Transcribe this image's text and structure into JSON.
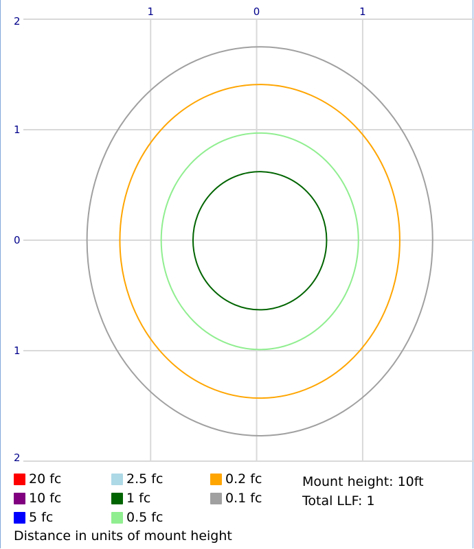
{
  "chart_data": {
    "type": "contour",
    "x_tick_labels": [
      "1",
      "0",
      "1"
    ],
    "x_tick_values": [
      -1,
      0,
      1
    ],
    "y_tick_labels": [
      "2",
      "1",
      "0",
      "1",
      "2"
    ],
    "y_tick_values": [
      2,
      1,
      0,
      -1,
      -2
    ],
    "xlim": [
      -2.2,
      2.05
    ],
    "ylim": [
      -2,
      2
    ],
    "grid": true,
    "contours": [
      {
        "label": "0.1 fc",
        "color": "#a0a0a0",
        "rx": 1.63,
        "ry_top": 1.75,
        "ry_bottom": 1.77,
        "cx": 0.03
      },
      {
        "label": "0.2 fc",
        "color": "#ffa500",
        "rx": 1.32,
        "ry_top": 1.41,
        "ry_bottom": 1.43,
        "cx": 0.03
      },
      {
        "label": "0.5 fc",
        "color": "#90ee90",
        "rx": 0.93,
        "ry_top": 0.97,
        "ry_bottom": 0.99,
        "cx": 0.03
      },
      {
        "label": "1 fc",
        "color": "#006400",
        "rx": 0.63,
        "ry_top": 0.62,
        "ry_bottom": 0.63,
        "cx": 0.03
      }
    ],
    "legend": [
      {
        "label": "20 fc",
        "color": "#ff0000"
      },
      {
        "label": "10 fc",
        "color": "#800080"
      },
      {
        "label": "5 fc",
        "color": "#0000ff"
      },
      {
        "label": "2.5 fc",
        "color": "#add8e6"
      },
      {
        "label": "1 fc",
        "color": "#006400"
      },
      {
        "label": "0.5 fc",
        "color": "#90ee90"
      },
      {
        "label": "0.2 fc",
        "color": "#ffa500"
      },
      {
        "label": "0.1 fc",
        "color": "#a0a0a0"
      }
    ]
  },
  "info": {
    "mount_height": "Mount height: 10ft",
    "total_llf": "Total LLF: 1"
  },
  "footer": "Distance in units of mount height"
}
